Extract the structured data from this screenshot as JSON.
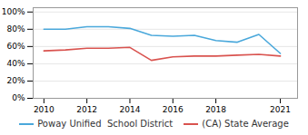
{
  "chart_data": {
    "type": "line",
    "x": [
      2010,
      2011,
      2012,
      2013,
      2014,
      2015,
      2016,
      2017,
      2018,
      2019,
      2020,
      2021
    ],
    "series": [
      {
        "name": "Poway Unified  School District",
        "color": "#4aa8db",
        "values": [
          0.8,
          0.8,
          0.83,
          0.83,
          0.81,
          0.73,
          0.72,
          0.73,
          0.67,
          0.65,
          0.74,
          0.52
        ]
      },
      {
        "name": "(CA) State Average",
        "color": "#d9534f",
        "values": [
          0.55,
          0.56,
          0.58,
          0.58,
          0.59,
          0.44,
          0.48,
          0.49,
          0.49,
          0.5,
          0.51,
          0.49
        ]
      }
    ],
    "xlim": [
      2009.5,
      2021.8
    ],
    "xticks": [
      2010,
      2012,
      2014,
      2016,
      2018,
      2021
    ],
    "ylim": [
      0.0,
      1.05
    ],
    "yticks": [
      {
        "value": 0.0,
        "label": "0%"
      },
      {
        "value": 0.2,
        "label": "20%"
      },
      {
        "value": 0.4,
        "label": "40%"
      },
      {
        "value": 0.6,
        "label": "60%"
      },
      {
        "value": 0.8,
        "label": "80%"
      },
      {
        "value": 1.0,
        "label": "100%"
      }
    ],
    "grid": true,
    "legend": "bottom"
  }
}
